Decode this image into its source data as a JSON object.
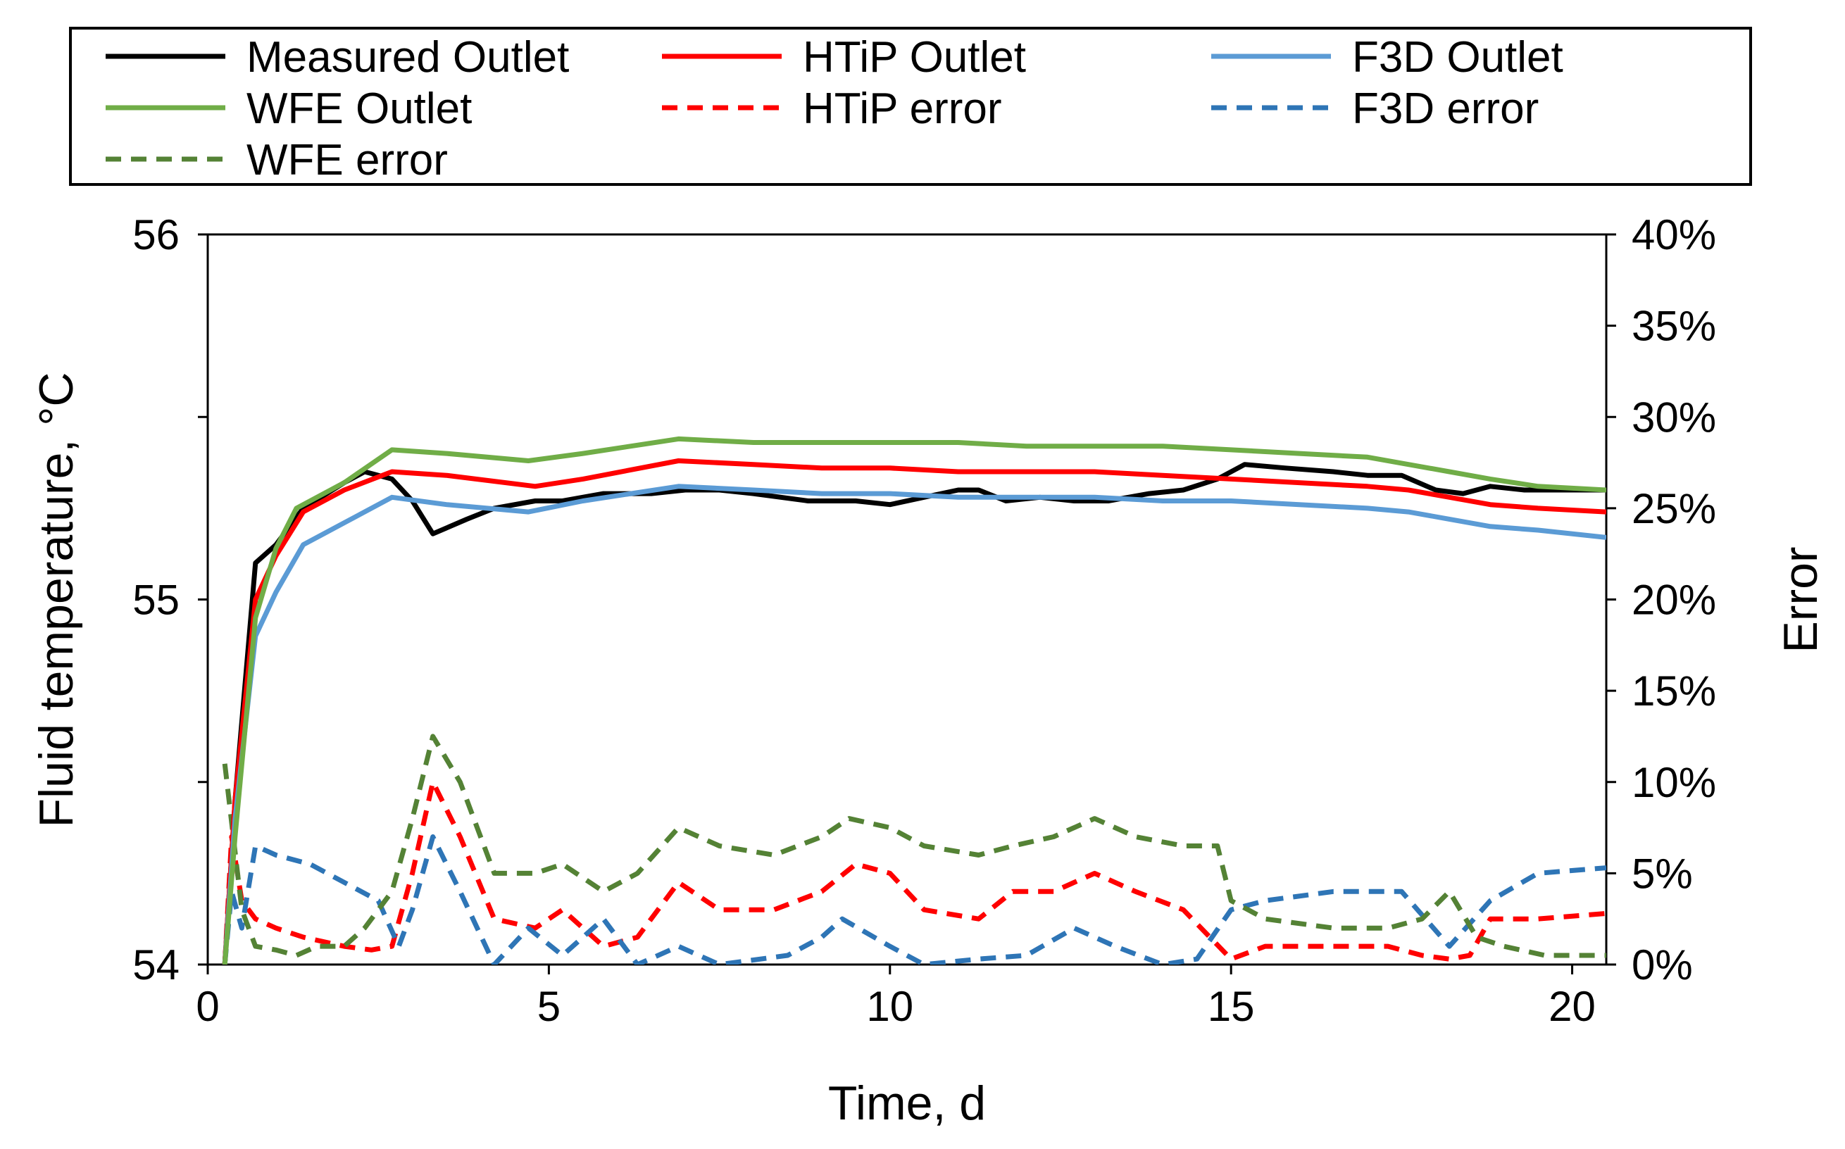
{
  "chart_data": {
    "type": "line",
    "title": "",
    "xlabel": "Time, d",
    "ylabel": "Fluid temperature,  °C",
    "y2label": "Error",
    "xlim": [
      0,
      20.5
    ],
    "ylim": [
      54,
      56
    ],
    "y2lim": [
      0,
      40
    ],
    "xticks": [
      "0",
      "5",
      "10",
      "15",
      "20"
    ],
    "xtick_values": [
      0,
      5,
      10,
      15,
      20
    ],
    "yticks": [
      "54",
      "55",
      "56"
    ],
    "ytick_values": [
      54,
      55,
      56
    ],
    "y2ticks": [
      "0%",
      "5%",
      "10%",
      "15%",
      "20%",
      "25%",
      "30%",
      "35%",
      "40%"
    ],
    "y2tick_values": [
      0,
      5,
      10,
      15,
      20,
      25,
      30,
      35,
      40
    ],
    "minor_yticks": [
      54.5,
      55.5
    ],
    "grid": false,
    "legend_position": "top",
    "series": [
      {
        "name": "Measured Outlet",
        "axis": "left",
        "color": "#000000",
        "dash": "solid",
        "x": [
          0.25,
          0.4,
          0.7,
          1.0,
          1.4,
          2.0,
          2.3,
          2.7,
          3.0,
          3.3,
          3.8,
          4.2,
          4.8,
          5.2,
          5.8,
          6.5,
          7.0,
          7.5,
          8.0,
          8.8,
          9.5,
          10.0,
          10.5,
          11.0,
          11.3,
          11.7,
          12.2,
          12.7,
          13.2,
          13.8,
          14.3,
          14.8,
          15.2,
          15.8,
          16.5,
          17.0,
          17.5,
          18.0,
          18.4,
          18.8,
          19.3,
          20.0,
          20.5
        ],
        "values": [
          54.0,
          54.45,
          55.1,
          55.15,
          55.25,
          55.32,
          55.35,
          55.33,
          55.27,
          55.18,
          55.22,
          55.25,
          55.27,
          55.27,
          55.29,
          55.29,
          55.3,
          55.3,
          55.29,
          55.27,
          55.27,
          55.26,
          55.28,
          55.3,
          55.3,
          55.27,
          55.28,
          55.27,
          55.27,
          55.29,
          55.3,
          55.33,
          55.37,
          55.36,
          55.35,
          55.34,
          55.34,
          55.3,
          55.29,
          55.31,
          55.3,
          55.3,
          55.3
        ]
      },
      {
        "name": "HTiP Outlet",
        "axis": "left",
        "color": "#ff0000",
        "dash": "solid",
        "x": [
          0.25,
          0.4,
          0.7,
          1.0,
          1.4,
          2.0,
          2.7,
          3.5,
          4.8,
          5.5,
          6.9,
          8.0,
          9.0,
          10.0,
          11.0,
          12.0,
          13.0,
          14.0,
          15.0,
          16.0,
          17.0,
          17.6,
          18.2,
          18.8,
          19.5,
          20.5
        ],
        "values": [
          54.0,
          54.45,
          55.0,
          55.12,
          55.24,
          55.3,
          55.35,
          55.34,
          55.31,
          55.33,
          55.38,
          55.37,
          55.36,
          55.36,
          55.35,
          55.35,
          55.35,
          55.34,
          55.33,
          55.32,
          55.31,
          55.3,
          55.28,
          55.26,
          55.25,
          55.24
        ]
      },
      {
        "name": "F3D Outlet",
        "axis": "left",
        "color": "#5b9bd5",
        "dash": "solid",
        "x": [
          0.25,
          0.4,
          0.7,
          1.0,
          1.4,
          2.0,
          2.7,
          3.5,
          4.7,
          5.5,
          6.9,
          8.0,
          9.0,
          10.0,
          11.0,
          12.0,
          13.0,
          14.0,
          15.0,
          16.0,
          17.0,
          17.6,
          18.2,
          18.8,
          19.5,
          20.5
        ],
        "values": [
          54.0,
          54.4,
          54.9,
          55.02,
          55.15,
          55.21,
          55.28,
          55.26,
          55.24,
          55.27,
          55.31,
          55.3,
          55.29,
          55.29,
          55.28,
          55.28,
          55.28,
          55.27,
          55.27,
          55.26,
          55.25,
          55.24,
          55.22,
          55.2,
          55.19,
          55.17
        ]
      },
      {
        "name": "WFE Outlet",
        "axis": "left",
        "color": "#70ad47",
        "dash": "solid",
        "x": [
          0.25,
          0.4,
          0.7,
          1.0,
          1.3,
          2.0,
          2.7,
          3.5,
          4.7,
          5.5,
          6.9,
          8.0,
          9.0,
          10.0,
          11.0,
          12.0,
          13.0,
          14.0,
          15.0,
          16.0,
          17.0,
          17.6,
          18.2,
          18.8,
          19.5,
          20.5
        ],
        "values": [
          54.0,
          54.35,
          54.95,
          55.14,
          55.25,
          55.32,
          55.41,
          55.4,
          55.38,
          55.4,
          55.44,
          55.43,
          55.43,
          55.43,
          55.43,
          55.42,
          55.42,
          55.42,
          55.41,
          55.4,
          55.39,
          55.37,
          55.35,
          55.33,
          55.31,
          55.3
        ]
      },
      {
        "name": "HTiP error",
        "axis": "right",
        "color": "#ff0000",
        "dash": "dashed",
        "x": [
          0.25,
          0.35,
          0.5,
          0.7,
          1.0,
          1.4,
          2.0,
          2.4,
          2.7,
          3.0,
          3.3,
          3.7,
          4.2,
          4.8,
          5.2,
          5.8,
          6.3,
          6.9,
          7.5,
          8.3,
          9.0,
          9.5,
          10.0,
          10.5,
          11.3,
          11.8,
          12.4,
          13.0,
          13.6,
          14.3,
          15.0,
          15.5,
          16.5,
          17.3,
          17.8,
          18.2,
          18.5,
          18.8,
          19.5,
          20.5
        ],
        "values": [
          0.0,
          7.0,
          3.5,
          2.5,
          2.0,
          1.5,
          1.0,
          0.8,
          1.0,
          5.0,
          10.0,
          7.0,
          2.5,
          2.0,
          3.0,
          1.0,
          1.5,
          4.5,
          3.0,
          3.0,
          4.0,
          5.5,
          5.0,
          3.0,
          2.5,
          4.0,
          4.0,
          5.0,
          4.0,
          3.0,
          0.3,
          1.0,
          1.0,
          1.0,
          0.5,
          0.3,
          0.5,
          2.5,
          2.5,
          2.8
        ]
      },
      {
        "name": "F3D error",
        "axis": "right",
        "color": "#2e75b6",
        "dash": "dashed",
        "x": [
          0.25,
          0.35,
          0.5,
          0.7,
          1.0,
          1.5,
          2.0,
          2.5,
          2.8,
          3.0,
          3.3,
          3.7,
          4.2,
          4.7,
          5.2,
          5.8,
          6.3,
          6.9,
          7.5,
          8.5,
          9.0,
          9.3,
          10.0,
          10.5,
          11.3,
          12.0,
          12.7,
          13.3,
          14.0,
          14.5,
          15.0,
          15.5,
          16.5,
          17.5,
          18.2,
          18.8,
          19.5,
          20.5
        ],
        "values": [
          0.0,
          4.0,
          2.0,
          6.5,
          6.0,
          5.5,
          4.5,
          3.5,
          1.0,
          3.0,
          7.0,
          4.0,
          0.0,
          2.0,
          0.5,
          2.5,
          0.0,
          1.0,
          0.0,
          0.5,
          1.5,
          2.5,
          1.0,
          0.0,
          0.3,
          0.5,
          2.0,
          1.0,
          0.0,
          0.3,
          3.0,
          3.5,
          4.0,
          4.0,
          1.0,
          3.5,
          5.0,
          5.3
        ]
      },
      {
        "name": "WFE error",
        "axis": "right",
        "color": "#548235",
        "dash": "dashed",
        "x": [
          0.25,
          0.5,
          0.7,
          1.0,
          1.3,
          1.6,
          2.0,
          2.3,
          2.7,
          3.0,
          3.3,
          3.7,
          4.2,
          4.8,
          5.2,
          5.8,
          6.3,
          6.9,
          7.5,
          8.3,
          9.0,
          9.4,
          10.0,
          10.5,
          11.3,
          11.8,
          12.4,
          13.0,
          13.6,
          14.3,
          14.8,
          15.0,
          15.5,
          16.5,
          17.3,
          17.8,
          18.2,
          18.6,
          19.0,
          19.6,
          20.5
        ],
        "values": [
          11.0,
          3.0,
          1.0,
          0.8,
          0.5,
          1.0,
          1.0,
          2.0,
          4.0,
          8.0,
          12.5,
          10.0,
          5.0,
          5.0,
          5.5,
          4.0,
          5.0,
          7.5,
          6.5,
          6.0,
          7.0,
          8.0,
          7.5,
          6.5,
          6.0,
          6.5,
          7.0,
          8.0,
          7.0,
          6.5,
          6.5,
          3.5,
          2.5,
          2.0,
          2.0,
          2.5,
          4.0,
          1.5,
          1.0,
          0.5,
          0.5
        ]
      }
    ]
  }
}
